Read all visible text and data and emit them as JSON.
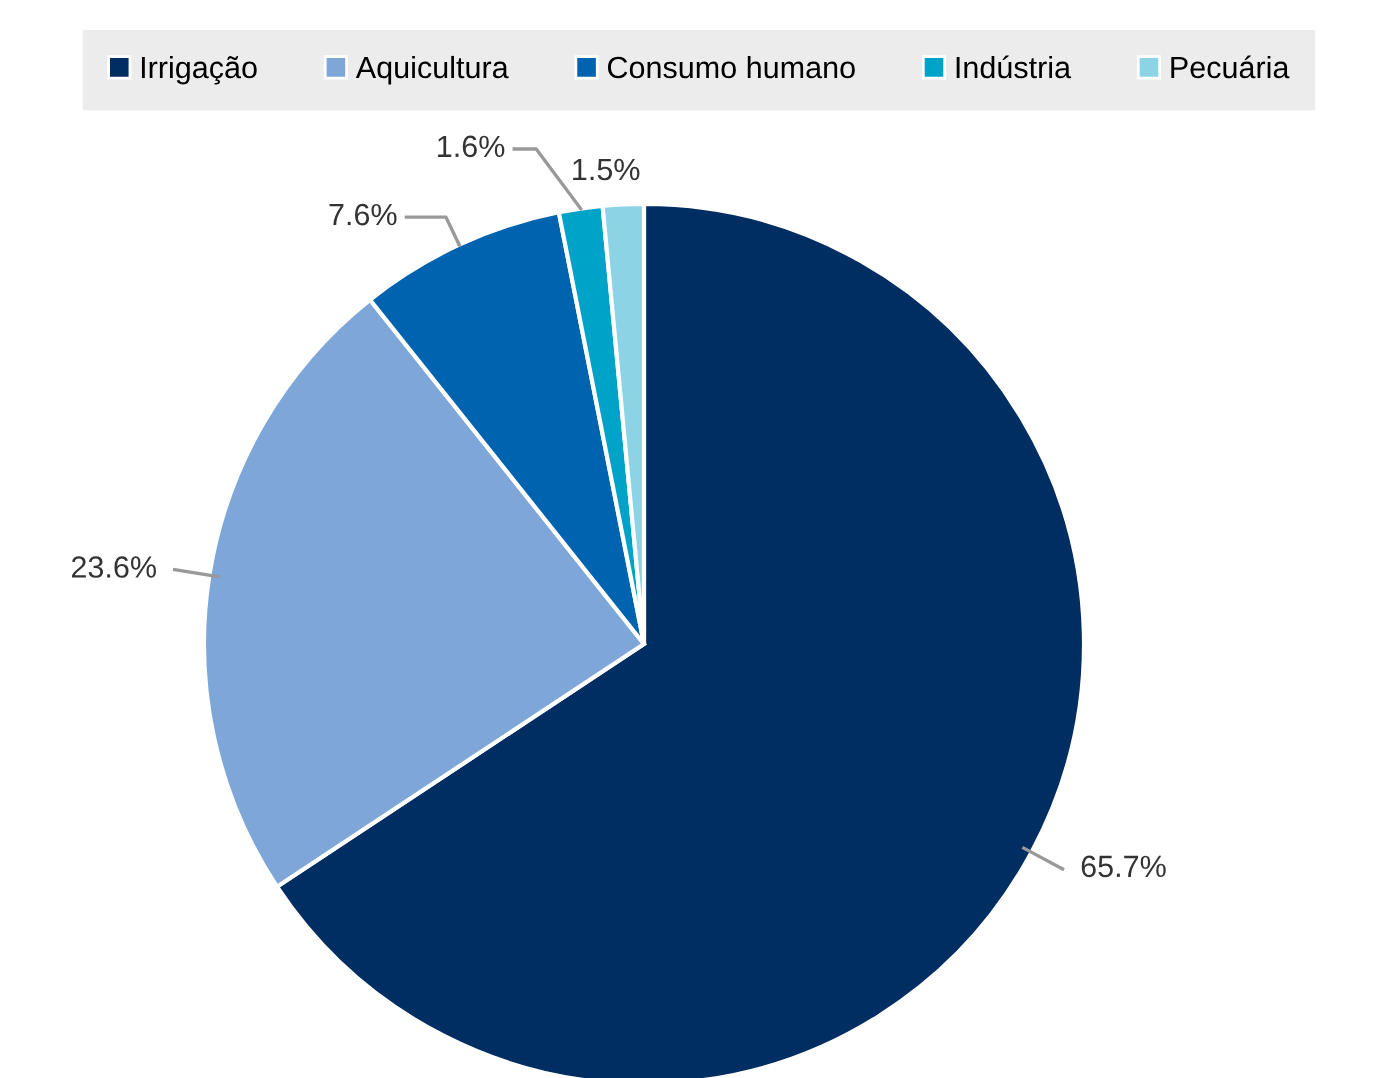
{
  "chart_data": {
    "type": "pie",
    "categories": [
      "Irrigação",
      "Aquicultura",
      "Consumo humano",
      "Indústria",
      "Pecuária"
    ],
    "values": [
      65.7,
      23.6,
      7.6,
      1.6,
      1.5
    ],
    "value_labels": [
      "65.7%",
      "23.6%",
      "7.6%",
      "1.6%",
      "1.5%"
    ],
    "colors": [
      "#002d62",
      "#7ea6d8",
      "#0063b0",
      "#00a3c8",
      "#8dd3e6"
    ],
    "legend": "top"
  }
}
